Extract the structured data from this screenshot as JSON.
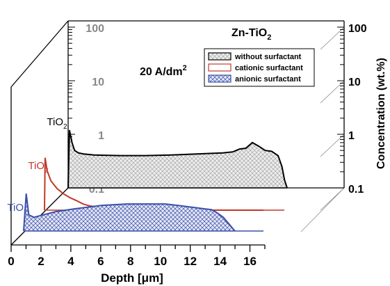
{
  "chart_data": {
    "type": "area",
    "title": "Zn-TiO",
    "title_subscript": "2",
    "annotation": "20 A/dm",
    "annotation_superscript": "2",
    "xlabel": "Depth [μm]",
    "ylabel": "Concentration (wt.%)",
    "scale_y": "log",
    "xlim": [
      0,
      17
    ],
    "ylim": [
      0.1,
      100
    ],
    "x_ticks": [
      "0",
      "2",
      "4",
      "6",
      "8",
      "10",
      "12",
      "14",
      "16"
    ],
    "y_ticks": [
      "100",
      "10",
      "1",
      "0.1"
    ],
    "legend_position": "top-right",
    "species_label": "TiO",
    "species_subscript": "2",
    "series": [
      {
        "name": "without surfactant",
        "color": "#000000",
        "fill": "crosshatch-grey",
        "x": [
          0.0,
          0.1,
          0.3,
          0.5,
          0.8,
          1.2,
          2.0,
          4.0,
          6.0,
          8.0,
          9.0,
          10.0,
          11.0,
          12.0,
          12.8,
          13.3,
          13.8,
          14.3,
          14.8,
          15.3,
          15.8,
          16.3,
          16.6,
          16.8,
          17.0
        ],
        "y": [
          0.1,
          1.2,
          0.7,
          0.5,
          0.45,
          0.43,
          0.41,
          0.4,
          0.4,
          0.41,
          0.42,
          0.43,
          0.44,
          0.45,
          0.47,
          0.53,
          0.55,
          0.7,
          0.6,
          0.5,
          0.48,
          0.4,
          0.25,
          0.14,
          0.1
        ]
      },
      {
        "name": "cationic surfactant",
        "color": "#c0392b",
        "fill": "none",
        "x": [
          0.0,
          0.05,
          0.2,
          0.5,
          1.0,
          1.5,
          2.0,
          2.5,
          3.0,
          3.5,
          4.0,
          4.5,
          5.0,
          17.0
        ],
        "y": [
          0.1,
          0.95,
          0.55,
          0.35,
          0.25,
          0.2,
          0.17,
          0.15,
          0.13,
          0.12,
          0.115,
          0.11,
          0.1,
          0.1
        ]
      },
      {
        "name": "anionic surfactant",
        "color": "#3b4fa8",
        "fill": "crosshatch-blue",
        "x": [
          0.0,
          0.2,
          0.4,
          0.8,
          1.5,
          2.5,
          4.0,
          6.0,
          8.0,
          10.0,
          11.0,
          12.0,
          13.0,
          14.0,
          14.6,
          15.0,
          15.5,
          16.0,
          16.4
        ],
        "y": [
          0.1,
          0.5,
          0.2,
          0.18,
          0.2,
          0.23,
          0.26,
          0.3,
          0.32,
          0.32,
          0.32,
          0.3,
          0.28,
          0.26,
          0.25,
          0.22,
          0.18,
          0.13,
          0.1
        ]
      }
    ]
  }
}
